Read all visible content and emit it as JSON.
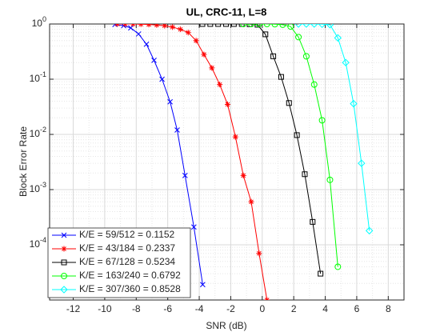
{
  "chart_data": {
    "type": "line",
    "title": "UL, CRC-11, L=8",
    "x_label": "SNR (dB)",
    "y_label": "Block Error Rate",
    "log_y": true,
    "grid": true,
    "minor_grid": true,
    "legend_position": "southwest",
    "xlim": [
      -13.5,
      9
    ],
    "xticks": [
      -12,
      -10,
      -8,
      -6,
      -4,
      -2,
      0,
      2,
      4,
      6,
      8
    ],
    "ylim": [
      1e-05,
      1
    ],
    "yticks": [
      {
        "value": 0.0001,
        "label": "10^-4"
      },
      {
        "value": 0.001,
        "label": "10^-3"
      },
      {
        "value": 0.01,
        "label": "10^-2"
      },
      {
        "value": 0.1,
        "label": "10^-1"
      },
      {
        "value": 1,
        "label": "10^0"
      }
    ],
    "series": [
      {
        "name": "K/E = 59/512 = 0.1152",
        "color": "#0000ff",
        "marker": "x",
        "x": [
          -9.35,
          -8.8,
          -8.35,
          -7.85,
          -7.35,
          -6.87,
          -6.36,
          -5.85,
          -5.4,
          -4.9,
          -4.34,
          -3.78
        ],
        "values": [
          0.98,
          0.93,
          0.85,
          0.66,
          0.43,
          0.22,
          0.1,
          0.039,
          0.012,
          0.0018,
          0.00021,
          1.9e-05
        ]
      },
      {
        "name": "K/E = 43/184 = 0.2337",
        "color": "#ff0000",
        "marker": "asterisk",
        "x": [
          -9.2,
          -8.7,
          -8.2,
          -7.7,
          -7.2,
          -6.7,
          -6.2,
          -5.7,
          -5.2,
          -4.7,
          -4.2,
          -3.7,
          -3.2,
          -2.7,
          -2.2,
          -1.7,
          -1.2,
          -0.7,
          -0.2,
          0.3
        ],
        "values": [
          1,
          1,
          1,
          0.99,
          0.98,
          0.96,
          0.93,
          0.88,
          0.8,
          0.7,
          0.5,
          0.28,
          0.16,
          0.08,
          0.035,
          0.009,
          0.0018,
          0.0006,
          7e-05,
          1e-05
        ]
      },
      {
        "name": "K/E = 67/128 = 0.5234",
        "color": "#000000",
        "marker": "square",
        "x": [
          -3.8,
          -3.3,
          -2.8,
          -2.3,
          -1.8,
          -1.3,
          -0.8,
          -0.3,
          0.2,
          0.7,
          1.2,
          1.7,
          2.2,
          2.7,
          3.2,
          3.7
        ],
        "values": [
          1,
          1,
          1,
          1,
          1,
          1,
          0.99,
          0.97,
          0.65,
          0.26,
          0.11,
          0.037,
          0.0097,
          0.0019,
          0.00026,
          3e-05
        ]
      },
      {
        "name": "K/E = 163/240 = 0.6792",
        "color": "#00ff00",
        "marker": "circle",
        "x": [
          -1.2,
          -0.7,
          -0.2,
          0.3,
          0.8,
          1.3,
          1.8,
          2.3,
          2.8,
          3.3,
          3.8,
          4.3,
          4.8
        ],
        "values": [
          1,
          1,
          1,
          1,
          0.99,
          0.97,
          0.9,
          0.58,
          0.26,
          0.08,
          0.018,
          0.0015,
          4e-05
        ]
      },
      {
        "name": "K/E = 307/360 = 0.8528",
        "color": "#00ffff",
        "marker": "diamond",
        "x": [
          2.3,
          2.8,
          3.3,
          3.8,
          4.3,
          4.8,
          5.3,
          5.8,
          6.3,
          6.8
        ],
        "values": [
          1,
          1,
          1,
          0.99,
          0.97,
          0.56,
          0.2,
          0.036,
          0.003,
          0.00018
        ]
      }
    ]
  }
}
